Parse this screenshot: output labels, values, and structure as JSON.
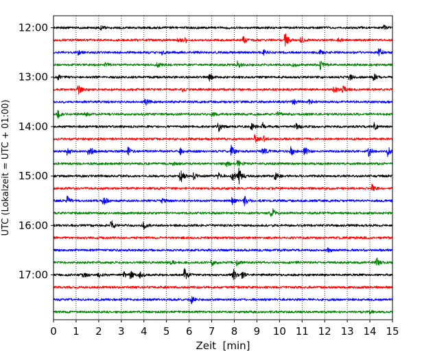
{
  "chart_data": {
    "type": "line",
    "title": "",
    "xlabel": "Zeit  [min]",
    "ylabel": "UTC (Lokalzeit = UTC + 01:00)",
    "xlim": [
      0,
      15
    ],
    "x_ticks": [
      "0",
      "1",
      "2",
      "3",
      "4",
      "5",
      "6",
      "7",
      "8",
      "9",
      "10",
      "11",
      "12",
      "13",
      "14",
      "15"
    ],
    "y_ticks": [
      {
        "label": "12:00",
        "trace": 0
      },
      {
        "label": "13:00",
        "trace": 4
      },
      {
        "label": "14:00",
        "trace": 8
      },
      {
        "label": "15:00",
        "trace": 12
      },
      {
        "label": "16:00",
        "trace": 16
      },
      {
        "label": "17:00",
        "trace": 20
      }
    ],
    "grid": "vertical dotted at each minute",
    "line_minutes": 15,
    "trace_colors": [
      "#000000",
      "#ff0000",
      "#0000ff",
      "#008000"
    ],
    "series": [
      {
        "start": "12:00",
        "events": [
          [
            2.1,
            0.25
          ],
          [
            14.6,
            0.3
          ]
        ]
      },
      {
        "start": "12:15",
        "events": [
          [
            5.5,
            0.35
          ],
          [
            5.8,
            0.4
          ],
          [
            8.4,
            0.55
          ],
          [
            10.25,
            1.0
          ],
          [
            10.95,
            0.35
          ],
          [
            12.6,
            0.3
          ]
        ]
      },
      {
        "start": "12:30",
        "events": [
          [
            1.1,
            0.3
          ],
          [
            4.8,
            0.25
          ],
          [
            9.3,
            0.35
          ],
          [
            11.8,
            0.3
          ],
          [
            14.4,
            0.6
          ]
        ]
      },
      {
        "start": "12:45",
        "events": [
          [
            2.3,
            0.3
          ],
          [
            4.6,
            0.3
          ],
          [
            8.15,
            0.45
          ],
          [
            10.6,
            0.35
          ],
          [
            11.8,
            0.5
          ]
        ]
      },
      {
        "start": "13:00",
        "events": [
          [
            0.2,
            0.35
          ],
          [
            6.9,
            0.5
          ],
          [
            13.1,
            0.45
          ],
          [
            14.15,
            0.55
          ]
        ]
      },
      {
        "start": "13:15",
        "events": [
          [
            1.1,
            0.55
          ],
          [
            5.7,
            0.3
          ],
          [
            12.4,
            0.45
          ],
          [
            12.8,
            0.5
          ]
        ]
      },
      {
        "start": "13:30",
        "events": [
          [
            4.05,
            0.45
          ],
          [
            10.6,
            0.4
          ],
          [
            11.3,
            0.4
          ]
        ]
      },
      {
        "start": "13:45",
        "events": [
          [
            0.2,
            0.45
          ],
          [
            1.4,
            0.3
          ],
          [
            7.0,
            0.3
          ],
          [
            9.9,
            0.3
          ]
        ]
      },
      {
        "start": "14:00",
        "events": [
          [
            7.3,
            0.6
          ],
          [
            8.75,
            0.55
          ],
          [
            9.25,
            0.45
          ],
          [
            10.7,
            0.5
          ],
          [
            14.2,
            0.5
          ]
        ]
      },
      {
        "start": "14:15",
        "events": [
          [
            8.9,
            0.55
          ],
          [
            9.3,
            0.3
          ]
        ]
      },
      {
        "start": "14:30",
        "events": [
          [
            0.6,
            0.5
          ],
          [
            1.55,
            1.0
          ],
          [
            3.3,
            0.45
          ],
          [
            5.6,
            0.55
          ],
          [
            7.85,
            0.75
          ],
          [
            9.25,
            0.6
          ],
          [
            10.5,
            0.6
          ],
          [
            11.1,
            0.6
          ],
          [
            13.95,
            0.6
          ],
          [
            14.8,
            0.6
          ]
        ]
      },
      {
        "start": "14:45",
        "events": [
          [
            5.3,
            0.25
          ],
          [
            7.65,
            0.4
          ],
          [
            8.15,
            0.55
          ]
        ]
      },
      {
        "start": "15:00",
        "events": [
          [
            5.6,
            1.0
          ],
          [
            6.2,
            0.5
          ],
          [
            7.3,
            0.5
          ],
          [
            7.9,
            0.75
          ],
          [
            8.2,
            1.0
          ],
          [
            9.8,
            0.6
          ]
        ]
      },
      {
        "start": "15:15",
        "events": [
          [
            14.1,
            0.6
          ]
        ]
      },
      {
        "start": "15:30",
        "events": [
          [
            0.6,
            0.6
          ],
          [
            2.2,
            0.6
          ],
          [
            4.8,
            0.3
          ],
          [
            7.9,
            0.4
          ],
          [
            8.45,
            0.55
          ]
        ]
      },
      {
        "start": "15:45",
        "events": [
          [
            9.6,
            0.4
          ],
          [
            9.7,
            0.3
          ]
        ]
      },
      {
        "start": "16:00",
        "events": [
          [
            2.55,
            0.6
          ],
          [
            4.0,
            0.55
          ]
        ]
      },
      {
        "start": "16:15",
        "events": []
      },
      {
        "start": "16:30",
        "events": [
          [
            12.15,
            0.25
          ]
        ]
      },
      {
        "start": "16:45",
        "events": [
          [
            5.2,
            0.3
          ],
          [
            7.0,
            0.4
          ],
          [
            8.1,
            0.3
          ],
          [
            14.3,
            0.5
          ]
        ]
      },
      {
        "start": "17:00",
        "events": [
          [
            1.3,
            0.3
          ],
          [
            2.0,
            0.35
          ],
          [
            3.1,
            0.4
          ],
          [
            3.4,
            0.5
          ],
          [
            3.8,
            0.45
          ],
          [
            5.8,
            0.95
          ],
          [
            7.95,
            0.75
          ],
          [
            8.35,
            0.4
          ]
        ]
      },
      {
        "start": "17:15",
        "events": []
      },
      {
        "start": "17:30",
        "events": [
          [
            6.1,
            0.45
          ]
        ]
      },
      {
        "start": "17:45",
        "events": [
          [
            14.0,
            0.2
          ]
        ]
      }
    ]
  }
}
